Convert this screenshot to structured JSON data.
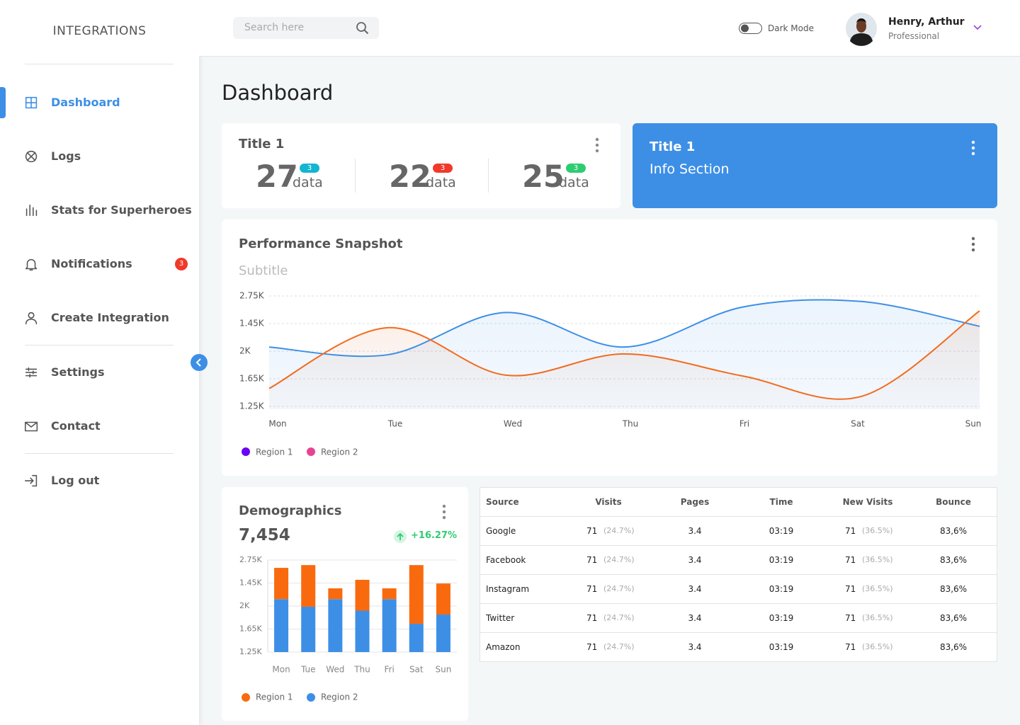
{
  "sidebar": {
    "brand": "INTEGRATIONS",
    "nav": [
      {
        "label": "Dashboard",
        "active": true
      },
      {
        "label": "Logs"
      },
      {
        "label": "Stats for  Superheroes"
      },
      {
        "label": "Notifications",
        "badge": 3
      },
      {
        "label": "Create Integration"
      },
      {
        "label": "Settings"
      },
      {
        "label": "Contact"
      },
      {
        "label": "Log out"
      }
    ]
  },
  "header": {
    "search_placeholder": "Search here",
    "dark_mode_label": "Dark Mode",
    "user_name": "Henry, Arthur",
    "user_role": "Professional"
  },
  "page_title": "Dashboard",
  "stats_card": {
    "title": "Title 1",
    "stats": [
      {
        "value": 27,
        "unit": "data",
        "badge": 3,
        "badge_color": "#13b5d1"
      },
      {
        "value": 22,
        "unit": "data",
        "badge": 3,
        "badge_color": "#f0392b"
      },
      {
        "value": 25,
        "unit": "data",
        "badge": 3,
        "badge_color": "#2ecc71"
      }
    ]
  },
  "info_card": {
    "title": "Title 1",
    "text": "Info Section"
  },
  "chart_data": [
    {
      "type": "line",
      "title": "Performance Snapshot",
      "subtitle": "Subtitle",
      "categories": [
        "Mon",
        "Tue",
        "Wed",
        "Thu",
        "Fri",
        "Sat",
        "Sun"
      ],
      "y_categories": [
        "1.25K",
        "1.65K",
        "2K",
        "1.45K",
        "2.75K"
      ],
      "ylim": [
        0,
        4
      ],
      "grid": true,
      "series": [
        {
          "name": "Region 1",
          "color": "#3d8fe6",
          "legend_color": "#6a00f4",
          "values": [
            2.15,
            1.87,
            3.4,
            2.15,
            3.6,
            3.8,
            2.9
          ]
        },
        {
          "name": "Region 2",
          "color": "#f26b1d",
          "legend_color": "#e84393",
          "values": [
            0.65,
            2.85,
            1.13,
            1.9,
            1.1,
            0.36,
            3.46
          ]
        }
      ]
    },
    {
      "type": "stacked_bar",
      "title": "Demographics",
      "total": "7,454",
      "change": "+16.27%",
      "categories": [
        "Mon",
        "Tue",
        "Wed",
        "Thu",
        "Fri",
        "Sat",
        "Sun"
      ],
      "y_categories": [
        "1.25K",
        "1.65K",
        "2K",
        "1.45K",
        "2.75K"
      ],
      "ylim": [
        0,
        4
      ],
      "grid": true,
      "series": [
        {
          "name": "Region 1",
          "color": "#f96a0e",
          "values": [
            1.36,
            1.81,
            0.47,
            1.34,
            0.47,
            2.55,
            1.35
          ]
        },
        {
          "name": "Region 2",
          "color": "#3d8fe6",
          "values": [
            2.3,
            1.97,
            2.3,
            1.8,
            2.3,
            1.23,
            1.63
          ]
        }
      ],
      "stack_order": [
        "Region 2",
        "Region 1"
      ]
    }
  ],
  "table": {
    "columns": [
      "Source",
      "Visits",
      "Pages",
      "Time",
      "New Visits",
      "Bounce"
    ],
    "rows": [
      [
        "Google",
        "71",
        "(24.7%)",
        "3.4",
        "03:19",
        "71",
        "(36.5%)",
        "83,6%"
      ],
      [
        "Facebook",
        "71",
        "(24.7%)",
        "3.4",
        "03:19",
        "71",
        "(36.5%)",
        "83,6%"
      ],
      [
        "Instagram",
        "71",
        "(24.7%)",
        "3.4",
        "03:19",
        "71",
        "(36.5%)",
        "83,6%"
      ],
      [
        "Twitter",
        "71",
        "(24.7%)",
        "3.4",
        "03:19",
        "71",
        "(36.5%)",
        "83,6%"
      ],
      [
        "Amazon",
        "71",
        "(24.7%)",
        "3.4",
        "03:19",
        "71",
        "(36.5%)",
        "83,6%"
      ]
    ]
  }
}
